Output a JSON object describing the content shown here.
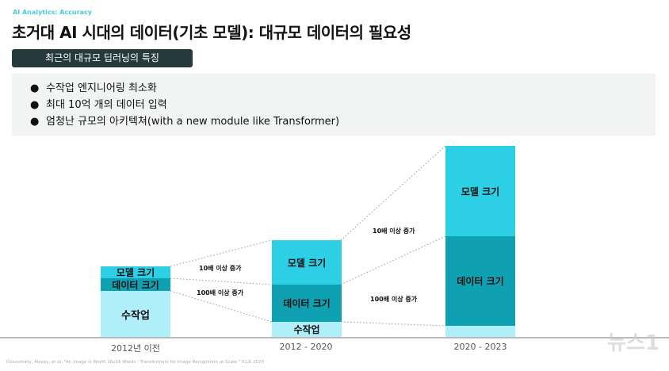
{
  "header": {
    "subtitle": "AI Analytics: Accuracy",
    "title": "초거대 AI 시대의 데이터(기초 모델): 대규모 데이터의 필요성"
  },
  "section": {
    "tag": "최근의 대규모 딥러닝의 특징",
    "bullets": [
      "수작업 엔지니어링 최소화",
      "최대 10억 개의 데이터 입력",
      "엄청난 규모의 아키텍쳐(with a new module like Transformer)"
    ]
  },
  "diagram": {
    "segments": {
      "model": "모델 크기",
      "data": "데이터 크기",
      "manual": "수작업"
    },
    "periods": [
      "2012년 이전",
      "2012 - 2020",
      "2020 - 2023"
    ],
    "annotations": {
      "model_growth": "10배 이상 증가",
      "data_growth": "100배 이상 증가"
    },
    "colors": {
      "model": "#2ccfe3",
      "data": "#0fa0b2",
      "manual": "#aeeffa"
    }
  },
  "citation": "Dosovitskiy, Alexey, et al. \"An Image is Worth 16x16 Words : Transformers for Image Recognition at Scale.\" ICLR 2020",
  "watermark": "뉴스1"
}
